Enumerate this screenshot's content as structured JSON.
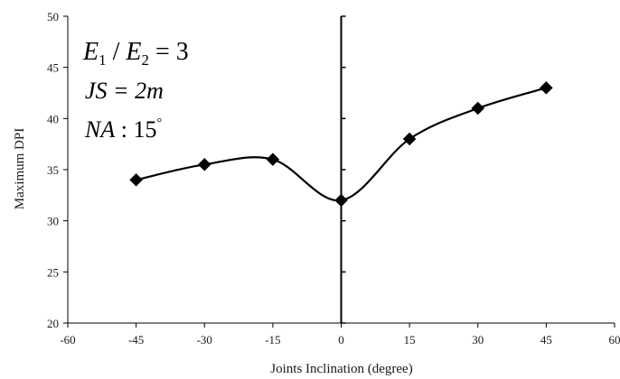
{
  "chart_data": {
    "type": "line",
    "xlabel": "Joints Inclination (degree)",
    "ylabel": "Maximum DPI",
    "xlim": [
      -60,
      60
    ],
    "ylim": [
      20,
      50
    ],
    "xticks": [
      -60,
      -45,
      -30,
      -15,
      0,
      15,
      30,
      45,
      60
    ],
    "yticks": [
      20,
      25,
      30,
      35,
      40,
      45,
      50
    ],
    "grid": false,
    "smooth": true,
    "marker": "diamond",
    "line_color": "#000000",
    "x": [
      -45,
      -30,
      -15,
      0,
      15,
      30,
      45
    ],
    "series": [
      {
        "values": [
          34,
          35.5,
          36,
          32,
          38,
          41,
          43
        ]
      }
    ],
    "annotations": [
      {
        "id": "ratio",
        "lhs": "E",
        "lhs_sub": "1",
        "mid": " / ",
        "rhs": "E",
        "rhs_sub": "2",
        "eq": " = 3"
      },
      {
        "id": "spacing",
        "lhs": "JS",
        "eq": " = 2m"
      },
      {
        "id": "angle",
        "lhs": "NA",
        "eq": " : 15",
        "sup": "°"
      }
    ]
  }
}
